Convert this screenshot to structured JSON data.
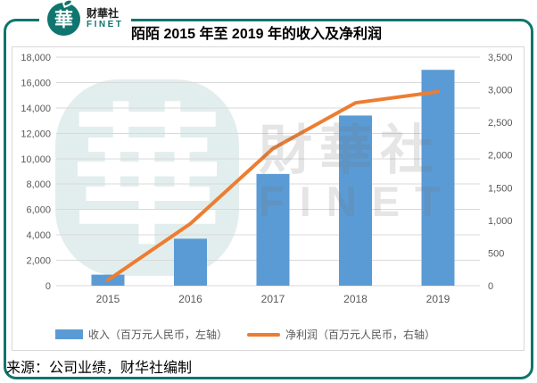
{
  "header": {
    "logo": {
      "glyph": "華",
      "brand_cn": "财華社",
      "brand_en": "FINET"
    }
  },
  "watermark": {
    "logo_glyph": "華",
    "text_cn": "財華社",
    "text_en": "FINET"
  },
  "footer": {
    "source": "来源：公司业绩，财华社编制"
  },
  "colors": {
    "teal": "#0f756e",
    "bar": "#5b9bd5",
    "line": "#ed7d31",
    "grid": "#d9d9d9",
    "axis_text": "#595959"
  },
  "chart_data": {
    "type": "bar",
    "title": "陌陌 2015 年至 2019 年的收入及净利润",
    "categories": [
      "2015",
      "2016",
      "2017",
      "2018",
      "2019"
    ],
    "series": [
      {
        "name": "收入（百万元人民币，左轴）",
        "type": "bar",
        "axis": "left",
        "color": "#5b9bd5",
        "values": [
          870,
          3700,
          8800,
          13400,
          17000
        ]
      },
      {
        "name": "净利润（百万元人民币，右轴）",
        "type": "line",
        "axis": "right",
        "color": "#ed7d31",
        "values": [
          85,
          950,
          2100,
          2800,
          2970
        ]
      }
    ],
    "left_axis": {
      "min": 0,
      "max": 18000,
      "step": 2000,
      "labels": [
        "0",
        "2,000",
        "4,000",
        "6,000",
        "8,000",
        "10,000",
        "12,000",
        "14,000",
        "16,000",
        "18,000"
      ]
    },
    "right_axis": {
      "min": 0,
      "max": 3500,
      "step": 500,
      "labels": [
        "0",
        "500",
        "1,000",
        "1,500",
        "2,000",
        "2,500",
        "3,000",
        "3,500"
      ]
    },
    "grid": true,
    "legend_position": "bottom"
  }
}
